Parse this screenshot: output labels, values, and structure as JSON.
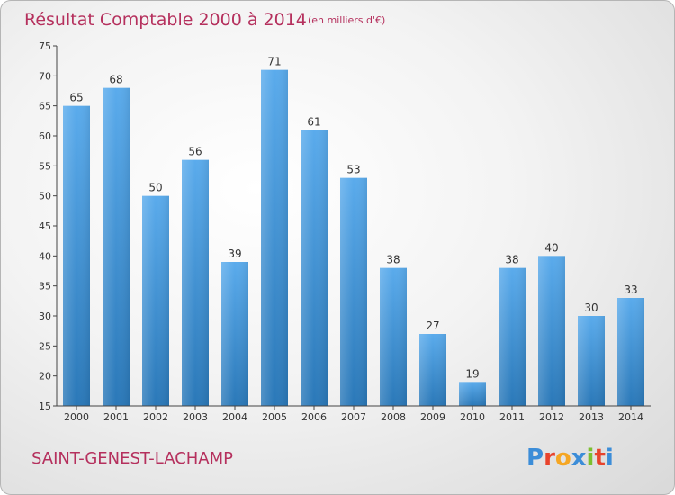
{
  "chart_data": {
    "type": "bar",
    "title": "Résultat Comptable 2000 à 2014",
    "unit_note": "(en milliers d'€)",
    "categories": [
      "2000",
      "2001",
      "2002",
      "2003",
      "2004",
      "2005",
      "2006",
      "2007",
      "2008",
      "2009",
      "2010",
      "2011",
      "2012",
      "2013",
      "2014"
    ],
    "values": [
      65,
      68,
      50,
      56,
      39,
      71,
      61,
      53,
      38,
      27,
      19,
      38,
      40,
      30,
      33
    ],
    "ylim": [
      15,
      75
    ],
    "yticks": [
      15,
      20,
      25,
      30,
      35,
      40,
      45,
      50,
      55,
      60,
      65,
      70,
      75
    ],
    "xlabel": "",
    "ylabel": "",
    "grid": false,
    "legend": "none",
    "bar_color_light": "#5aabec",
    "bar_color_dark": "#2a78b8"
  },
  "footer": {
    "town": "SAINT-GENEST-LACHAMP",
    "brand": "Proxiti",
    "brand_colors": [
      "#3c8dd8",
      "#e8432c",
      "#f5a623",
      "#3c8dd8",
      "#7cbf2f",
      "#e8432c",
      "#3c8dd8"
    ]
  }
}
